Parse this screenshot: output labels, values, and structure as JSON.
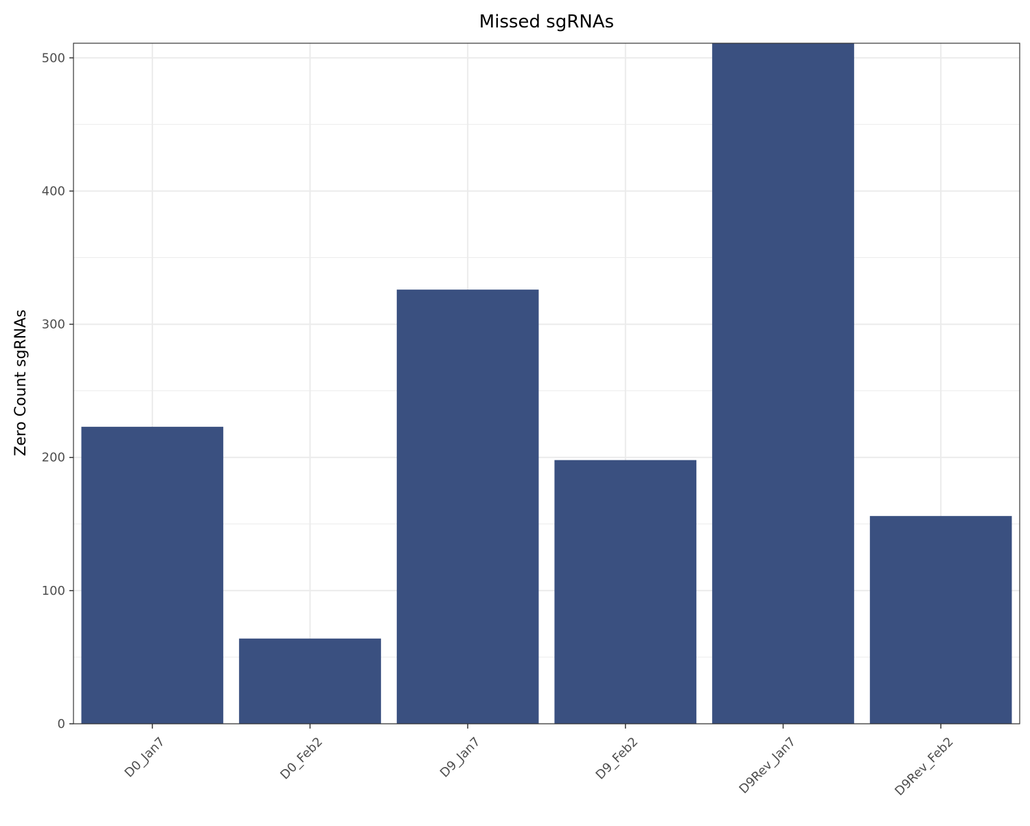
{
  "chart_data": {
    "type": "bar",
    "title": "Missed sgRNAs",
    "xlabel": "",
    "ylabel": "Zero Count sgRNAs",
    "categories": [
      "D0_Jan7",
      "D0_Feb2",
      "D9_Jan7",
      "D9_Feb2",
      "D9Rev_Jan7",
      "D9Rev_Feb2"
    ],
    "values": [
      223,
      64,
      326,
      198,
      512,
      156
    ],
    "ylim": [
      0,
      511
    ],
    "yticks": [
      0,
      100,
      200,
      300,
      400,
      500
    ],
    "grid": true,
    "bar_color": "#3a5080",
    "x_tick_rotation": -45
  }
}
